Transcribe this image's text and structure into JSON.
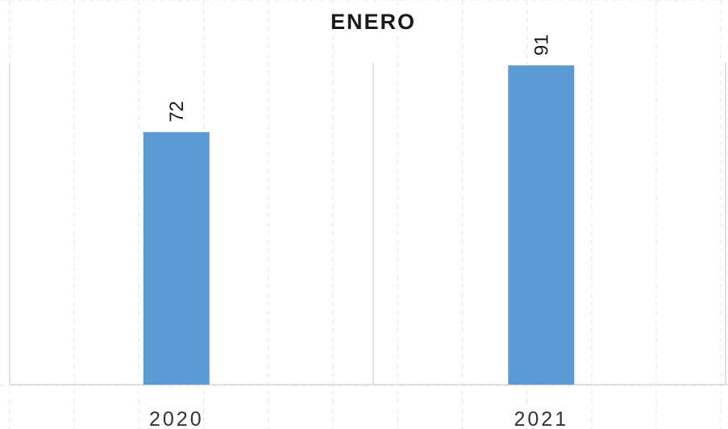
{
  "chart_data": {
    "type": "bar",
    "title": "ENERO",
    "categories": [
      "2020",
      "2021"
    ],
    "values": [
      72,
      91
    ],
    "data_labels": [
      "72",
      "91"
    ],
    "bar_color": "#5b9bd5",
    "xlabel": "",
    "ylabel": "",
    "ylim": [
      0,
      100
    ],
    "grid": true,
    "legend": "none"
  }
}
